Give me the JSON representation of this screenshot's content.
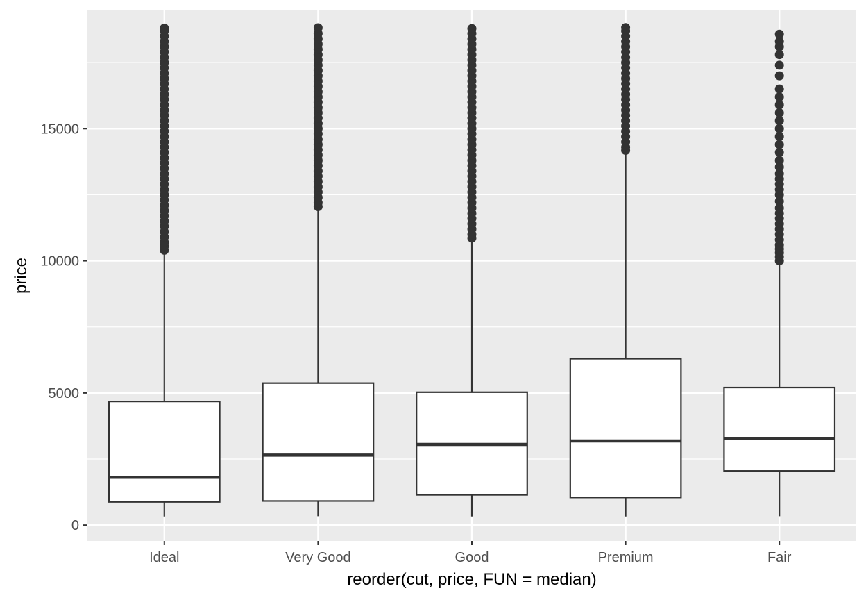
{
  "chart_data": {
    "type": "boxplot",
    "xlabel": "reorder(cut, price, FUN = median)",
    "ylabel": "price",
    "ylim": [
      -600,
      19500
    ],
    "y_ticks": [
      0,
      5000,
      10000,
      15000
    ],
    "y_tick_labels": [
      "0",
      "5000",
      "10000",
      "15000"
    ],
    "grid": true,
    "colors": {
      "panel": "#ebebeb",
      "grid": "#ffffff",
      "box_fill": "#ffffff",
      "line": "#333333"
    },
    "categories": [
      "Ideal",
      "Very Good",
      "Good",
      "Premium",
      "Fair"
    ],
    "boxes": [
      {
        "category": "Ideal",
        "whisker_low": 326,
        "q1": 878,
        "median": 1810,
        "q3": 4678,
        "whisker_high": 10360,
        "outliers": [
          10400,
          10550,
          10700,
          10900,
          11100,
          11300,
          11500,
          11700,
          11900,
          12100,
          12300,
          12500,
          12700,
          12900,
          13100,
          13300,
          13500,
          13700,
          13900,
          14100,
          14300,
          14500,
          14700,
          14900,
          15100,
          15300,
          15500,
          15700,
          15900,
          16100,
          16300,
          16500,
          16700,
          16900,
          17100,
          17300,
          17500,
          17700,
          17900,
          18100,
          18300,
          18500,
          18700,
          18806
        ]
      },
      {
        "category": "Very Good",
        "whisker_low": 336,
        "q1": 912,
        "median": 2648,
        "q3": 5373,
        "whisker_high": 12030,
        "outliers": [
          12050,
          12200,
          12400,
          12600,
          12800,
          13000,
          13200,
          13400,
          13600,
          13800,
          14000,
          14200,
          14400,
          14600,
          14800,
          15000,
          15200,
          15400,
          15600,
          15800,
          16000,
          16200,
          16400,
          16600,
          16800,
          17000,
          17200,
          17400,
          17600,
          17800,
          18000,
          18200,
          18400,
          18600,
          18818
        ]
      },
      {
        "category": "Good",
        "whisker_low": 327,
        "q1": 1145,
        "median": 3051,
        "q3": 5028,
        "whisker_high": 10840,
        "outliers": [
          10860,
          11000,
          11200,
          11400,
          11600,
          11800,
          12000,
          12200,
          12400,
          12600,
          12800,
          13000,
          13200,
          13400,
          13600,
          13800,
          14000,
          14200,
          14400,
          14600,
          14800,
          15000,
          15200,
          15400,
          15600,
          15800,
          16000,
          16200,
          16400,
          16600,
          16800,
          17000,
          17200,
          17400,
          17600,
          17800,
          18000,
          18200,
          18400,
          18600,
          18788
        ]
      },
      {
        "category": "Premium",
        "whisker_low": 326,
        "q1": 1046,
        "median": 3185,
        "q3": 6296,
        "whisker_high": 14150,
        "outliers": [
          14180,
          14300,
          14500,
          14700,
          14900,
          15100,
          15300,
          15500,
          15700,
          15900,
          16100,
          16300,
          16500,
          16700,
          16900,
          17100,
          17300,
          17500,
          17700,
          17900,
          18100,
          18300,
          18500,
          18700,
          18823
        ]
      },
      {
        "category": "Fair",
        "whisker_low": 337,
        "q1": 2050,
        "median": 3282,
        "q3": 5206,
        "whisker_high": 9950,
        "outliers": [
          10000,
          10150,
          10300,
          10450,
          10600,
          10800,
          11000,
          11200,
          11400,
          11600,
          11800,
          12000,
          12250,
          12500,
          12700,
          12900,
          13100,
          13300,
          13550,
          13800,
          14100,
          14400,
          14700,
          15000,
          15300,
          15600,
          15900,
          16200,
          16500,
          17000,
          17400,
          17800,
          18100,
          18300,
          18574
        ]
      }
    ]
  }
}
